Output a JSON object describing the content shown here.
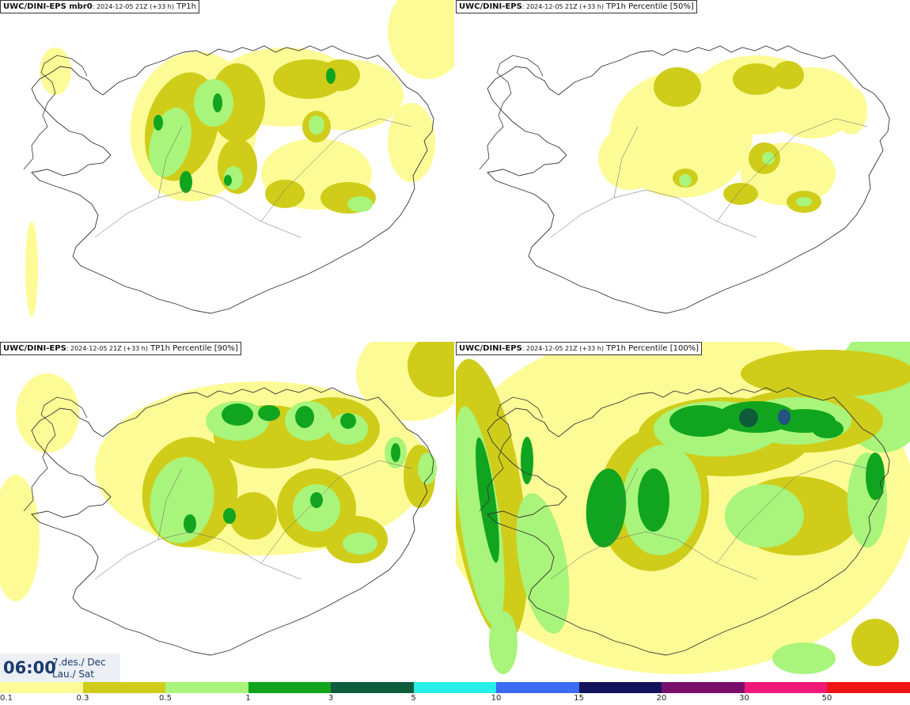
{
  "panels": [
    {
      "model": "UWC/DINI-EPS mbr0",
      "run": ": 2024-12-05 21Z (+33 h)",
      "field": " TP1h"
    },
    {
      "model": "UWC/DINI-EPS",
      "run": ": 2024-12-05 21Z (+33 h)",
      "field": " TP1h Percentile [50%]"
    },
    {
      "model": "UWC/DINI-EPS",
      "run": ": 2024-12-05 21Z (+33 h)",
      "field": " TP1h Percentile [90%]"
    },
    {
      "model": "UWC/DINI-EPS",
      "run": ": 2024-12-05 21Z (+33 h)",
      "field": " TP1h Percentile [100%]"
    }
  ],
  "valid_time": {
    "time": "06:00",
    "date_line1": "7.des./ Dec",
    "date_line2": "Lau./ Sat"
  },
  "colorbar": {
    "labels": [
      "0.1",
      "0.3",
      "0.5",
      "1",
      "3",
      "5",
      "10",
      "15",
      "20",
      "30",
      "50"
    ],
    "colors": [
      "#fdfb96",
      "#cfcd1a",
      "#a9f47a",
      "#11a51f",
      "#0f5c3c",
      "#28f0e8",
      "#3d6bf2",
      "#13135c",
      "#7a0f6b",
      "#f0197a",
      "#f01414"
    ]
  },
  "legend_colors": {
    "light": "#fdfb96",
    "mid": "#cfcd1a",
    "lightgreen": "#a9f47a",
    "green": "#11a51f",
    "darkgreen": "#0f5c3c",
    "blue": "#23537f"
  }
}
